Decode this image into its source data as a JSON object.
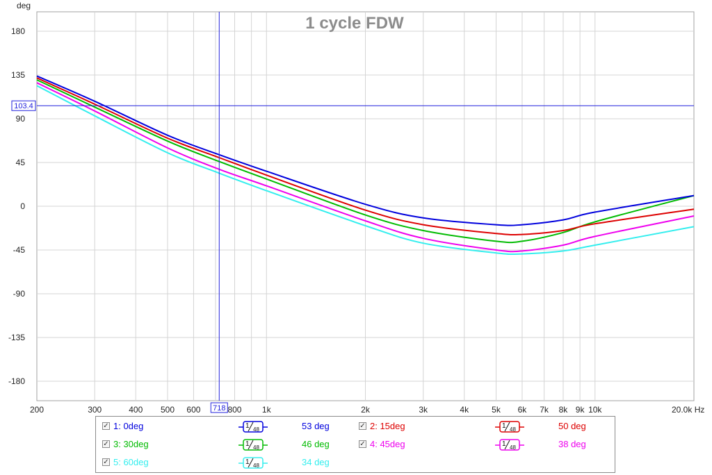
{
  "chart_data": {
    "type": "line",
    "title": "1 cycle FDW",
    "ylabel": "deg",
    "xlabel": "Hz",
    "x_scale": "log",
    "xlim": [
      200,
      20000
    ],
    "ylim": [
      -200,
      200
    ],
    "grid": true,
    "x_tick_labels": [
      {
        "value": 200,
        "label": "200"
      },
      {
        "value": 300,
        "label": "300"
      },
      {
        "value": 400,
        "label": "400"
      },
      {
        "value": 500,
        "label": "500"
      },
      {
        "value": 600,
        "label": "600"
      },
      {
        "value": 800,
        "label": "800"
      },
      {
        "value": 1000,
        "label": "1k"
      },
      {
        "value": 2000,
        "label": "2k"
      },
      {
        "value": 3000,
        "label": "3k"
      },
      {
        "value": 4000,
        "label": "4k"
      },
      {
        "value": 5000,
        "label": "5k"
      },
      {
        "value": 6000,
        "label": "6k"
      },
      {
        "value": 7000,
        "label": "7k"
      },
      {
        "value": 8000,
        "label": "8k"
      },
      {
        "value": 9000,
        "label": "9k"
      },
      {
        "value": 10000,
        "label": "10k"
      },
      {
        "value": 20000,
        "label": "20.0k Hz"
      }
    ],
    "x_minor_grid": [
      700,
      900,
      1000,
      2000,
      3000,
      4000,
      5000,
      6000,
      7000,
      8000,
      9000,
      10000
    ],
    "y_ticks": [
      -180,
      -135,
      -90,
      -45,
      0,
      45,
      90,
      135,
      180
    ],
    "x": [
      200,
      300,
      500,
      718,
      1000,
      2000,
      3000,
      5000,
      6000,
      8000,
      10000,
      20000
    ],
    "series": [
      {
        "name": "1: 0deg",
        "color": "#0000dd",
        "values": [
          134,
          108,
          73,
          53,
          36,
          2,
          -12,
          -19,
          -19,
          -14,
          -6,
          11
        ]
      },
      {
        "name": "2: 15deg",
        "color": "#dd0000",
        "values": [
          132,
          105,
          70,
          50,
          32,
          -4,
          -19,
          -28,
          -29,
          -25,
          -18,
          -3
        ]
      },
      {
        "name": "3: 30deg",
        "color": "#00bb00",
        "values": [
          130,
          102,
          67,
          46,
          28,
          -9,
          -25,
          -36,
          -36,
          -27,
          -16,
          11
        ]
      },
      {
        "name": "4: 45deg",
        "color": "#ee00ee",
        "values": [
          127,
          98,
          60,
          38,
          21,
          -15,
          -33,
          -45,
          -46,
          -40,
          -31,
          -10
        ]
      },
      {
        "name": "5: 60deg",
        "color": "#33eeee",
        "values": [
          124,
          93,
          55,
          34,
          16,
          -20,
          -38,
          -48,
          -49,
          -46,
          -40,
          -21
        ]
      }
    ],
    "cursor": {
      "x": 718,
      "x_label": "718",
      "y": 103.4,
      "y_label": "103.4",
      "color": "#2222dd"
    },
    "legend": {
      "placement": "bottom",
      "smoothing_label": "1/48",
      "smoothing_num": "1",
      "smoothing_den": "48",
      "items": [
        {
          "name": "1: 0deg",
          "value": "53 deg",
          "color": "#0000dd",
          "checked": "☑"
        },
        {
          "name": "2: 15deg",
          "value": "50 deg",
          "color": "#dd0000",
          "checked": "☑"
        },
        {
          "name": "3: 30deg",
          "value": "46 deg",
          "color": "#00bb00",
          "checked": "☑"
        },
        {
          "name": "4: 45deg",
          "value": "38 deg",
          "color": "#ee00ee",
          "checked": "☑"
        },
        {
          "name": "5: 60deg",
          "value": "34 deg",
          "color": "#33eeee",
          "checked": "☑"
        }
      ]
    }
  }
}
